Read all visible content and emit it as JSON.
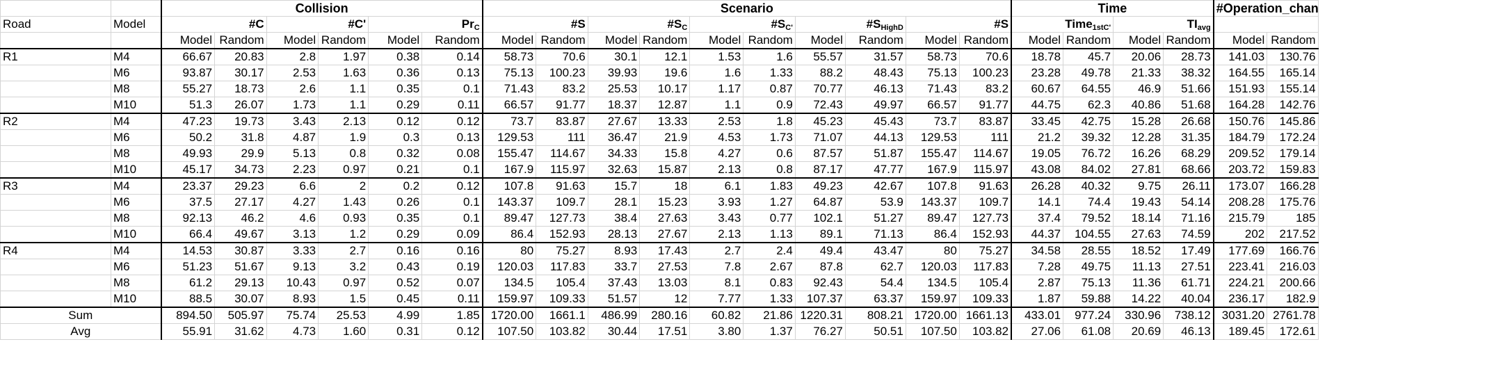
{
  "header": {
    "groups": [
      {
        "label": "Collision",
        "span": 6
      },
      {
        "label": "Scenario",
        "span": 10
      },
      {
        "label": "Time",
        "span": 4
      },
      {
        "label": "#Operation_change",
        "span": 2
      }
    ],
    "road_label": "Road",
    "model_label": "Model",
    "metrics": [
      {
        "base": "#C",
        "sub": ""
      },
      {
        "base": "#C'",
        "sub": ""
      },
      {
        "base": "Pr",
        "sub": "C"
      },
      {
        "base": "#S",
        "sub": ""
      },
      {
        "base": "#S",
        "sub": "C"
      },
      {
        "base": "#S",
        "sub": "C'"
      },
      {
        "base": "#S",
        "sub": "HighD"
      },
      {
        "base": "#S",
        "sub": ""
      },
      {
        "base": "Time",
        "sub": "1stC'"
      },
      {
        "base": "TI",
        "sub": "avg"
      },
      {
        "base": "",
        "sub": ""
      }
    ],
    "col_model": "Model",
    "col_random": "Random"
  },
  "roads": [
    {
      "road": "R1",
      "rows": [
        {
          "model": "M4",
          "values": [
            "66.67",
            "20.83",
            "2.8",
            "1.97",
            "0.38",
            "0.14",
            "58.73",
            "70.6",
            "30.1",
            "12.1",
            "1.53",
            "1.6",
            "55.57",
            "31.57",
            "58.73",
            "70.6",
            "18.78",
            "45.7",
            "20.06",
            "28.73",
            "141.03",
            "130.76"
          ]
        },
        {
          "model": "M6",
          "values": [
            "93.87",
            "30.17",
            "2.53",
            "1.63",
            "0.36",
            "0.13",
            "75.13",
            "100.23",
            "39.93",
            "19.6",
            "1.6",
            "1.33",
            "88.2",
            "48.43",
            "75.13",
            "100.23",
            "23.28",
            "49.78",
            "21.33",
            "38.32",
            "164.55",
            "165.14"
          ]
        },
        {
          "model": "M8",
          "values": [
            "55.27",
            "18.73",
            "2.6",
            "1.1",
            "0.35",
            "0.1",
            "71.43",
            "83.2",
            "25.53",
            "10.17",
            "1.17",
            "0.87",
            "70.77",
            "46.13",
            "71.43",
            "83.2",
            "60.67",
            "64.55",
            "46.9",
            "51.66",
            "151.93",
            "155.14"
          ]
        },
        {
          "model": "M10",
          "values": [
            "51.3",
            "26.07",
            "1.73",
            "1.1",
            "0.29",
            "0.11",
            "66.57",
            "91.77",
            "18.37",
            "12.87",
            "1.1",
            "0.9",
            "72.43",
            "49.97",
            "66.57",
            "91.77",
            "44.75",
            "62.3",
            "40.86",
            "51.68",
            "164.28",
            "142.76"
          ]
        }
      ]
    },
    {
      "road": "R2",
      "rows": [
        {
          "model": "M4",
          "values": [
            "47.23",
            "19.73",
            "3.43",
            "2.13",
            "0.12",
            "0.12",
            "73.7",
            "83.87",
            "27.67",
            "13.33",
            "2.53",
            "1.8",
            "45.23",
            "45.43",
            "73.7",
            "83.87",
            "33.45",
            "42.75",
            "15.28",
            "26.68",
            "150.76",
            "145.86"
          ]
        },
        {
          "model": "M6",
          "values": [
            "50.2",
            "31.8",
            "4.87",
            "1.9",
            "0.3",
            "0.13",
            "129.53",
            "111",
            "36.47",
            "21.9",
            "4.53",
            "1.73",
            "71.07",
            "44.13",
            "129.53",
            "111",
            "21.2",
            "39.32",
            "12.28",
            "31.35",
            "184.79",
            "172.24"
          ]
        },
        {
          "model": "M8",
          "values": [
            "49.93",
            "29.9",
            "5.13",
            "0.8",
            "0.32",
            "0.08",
            "155.47",
            "114.67",
            "34.33",
            "15.8",
            "4.27",
            "0.6",
            "87.57",
            "51.87",
            "155.47",
            "114.67",
            "19.05",
            "76.72",
            "16.26",
            "68.29",
            "209.52",
            "179.14"
          ]
        },
        {
          "model": "M10",
          "values": [
            "45.17",
            "34.73",
            "2.23",
            "0.97",
            "0.21",
            "0.1",
            "167.9",
            "115.97",
            "32.63",
            "15.87",
            "2.13",
            "0.8",
            "87.17",
            "47.77",
            "167.9",
            "115.97",
            "43.08",
            "84.02",
            "27.81",
            "68.66",
            "203.72",
            "159.83"
          ]
        }
      ]
    },
    {
      "road": "R3",
      "rows": [
        {
          "model": "M4",
          "values": [
            "23.37",
            "29.23",
            "6.6",
            "2",
            "0.2",
            "0.12",
            "107.8",
            "91.63",
            "15.7",
            "18",
            "6.1",
            "1.83",
            "49.23",
            "42.67",
            "107.8",
            "91.63",
            "26.28",
            "40.32",
            "9.75",
            "26.11",
            "173.07",
            "166.28"
          ]
        },
        {
          "model": "M6",
          "values": [
            "37.5",
            "27.17",
            "4.27",
            "1.43",
            "0.26",
            "0.1",
            "143.37",
            "109.7",
            "28.1",
            "15.23",
            "3.93",
            "1.27",
            "64.87",
            "53.9",
            "143.37",
            "109.7",
            "14.1",
            "74.4",
            "19.43",
            "54.14",
            "208.28",
            "175.76"
          ]
        },
        {
          "model": "M8",
          "values": [
            "92.13",
            "46.2",
            "4.6",
            "0.93",
            "0.35",
            "0.1",
            "89.47",
            "127.73",
            "38.4",
            "27.63",
            "3.43",
            "0.77",
            "102.1",
            "51.27",
            "89.47",
            "127.73",
            "37.4",
            "79.52",
            "18.14",
            "71.16",
            "215.79",
            "185"
          ]
        },
        {
          "model": "M10",
          "values": [
            "66.4",
            "49.67",
            "3.13",
            "1.2",
            "0.29",
            "0.09",
            "86.4",
            "152.93",
            "28.13",
            "27.67",
            "2.13",
            "1.13",
            "89.1",
            "71.13",
            "86.4",
            "152.93",
            "44.37",
            "104.55",
            "27.63",
            "74.59",
            "202",
            "217.52"
          ]
        }
      ]
    },
    {
      "road": "R4",
      "rows": [
        {
          "model": "M4",
          "values": [
            "14.53",
            "30.87",
            "3.33",
            "2.7",
            "0.16",
            "0.16",
            "80",
            "75.27",
            "8.93",
            "17.43",
            "2.7",
            "2.4",
            "49.4",
            "43.47",
            "80",
            "75.27",
            "34.58",
            "28.55",
            "18.52",
            "17.49",
            "177.69",
            "166.76"
          ]
        },
        {
          "model": "M6",
          "values": [
            "51.23",
            "51.67",
            "9.13",
            "3.2",
            "0.43",
            "0.19",
            "120.03",
            "117.83",
            "33.7",
            "27.53",
            "7.8",
            "2.67",
            "87.8",
            "62.7",
            "120.03",
            "117.83",
            "7.28",
            "49.75",
            "11.13",
            "27.51",
            "223.41",
            "216.03"
          ]
        },
        {
          "model": "M8",
          "values": [
            "61.2",
            "29.13",
            "10.43",
            "0.97",
            "0.52",
            "0.07",
            "134.5",
            "105.4",
            "37.43",
            "13.03",
            "8.1",
            "0.83",
            "92.43",
            "54.4",
            "134.5",
            "105.4",
            "2.87",
            "75.13",
            "11.36",
            "61.71",
            "224.21",
            "200.66"
          ]
        },
        {
          "model": "M10",
          "values": [
            "88.5",
            "30.07",
            "8.93",
            "1.5",
            "0.45",
            "0.11",
            "159.97",
            "109.33",
            "51.57",
            "12",
            "7.77",
            "1.33",
            "107.37",
            "63.37",
            "159.97",
            "109.33",
            "1.87",
            "59.88",
            "14.22",
            "40.04",
            "236.17",
            "182.9"
          ]
        }
      ]
    }
  ],
  "summary": [
    {
      "label": "Sum",
      "values": [
        "894.50",
        "505.97",
        "75.74",
        "25.53",
        "4.99",
        "1.85",
        "1720.00",
        "1661.1",
        "486.99",
        "280.16",
        "60.82",
        "21.86",
        "1220.31",
        "808.21",
        "1720.00",
        "1661.13",
        "433.01",
        "977.24",
        "330.96",
        "738.12",
        "3031.20",
        "2761.78"
      ]
    },
    {
      "label": "Avg",
      "values": [
        "55.91",
        "31.62",
        "4.73",
        "1.60",
        "0.31",
        "0.12",
        "107.50",
        "103.82",
        "30.44",
        "17.51",
        "3.80",
        "1.37",
        "76.27",
        "50.51",
        "107.50",
        "103.82",
        "27.06",
        "61.08",
        "20.69",
        "46.13",
        "189.45",
        "172.61"
      ]
    }
  ]
}
